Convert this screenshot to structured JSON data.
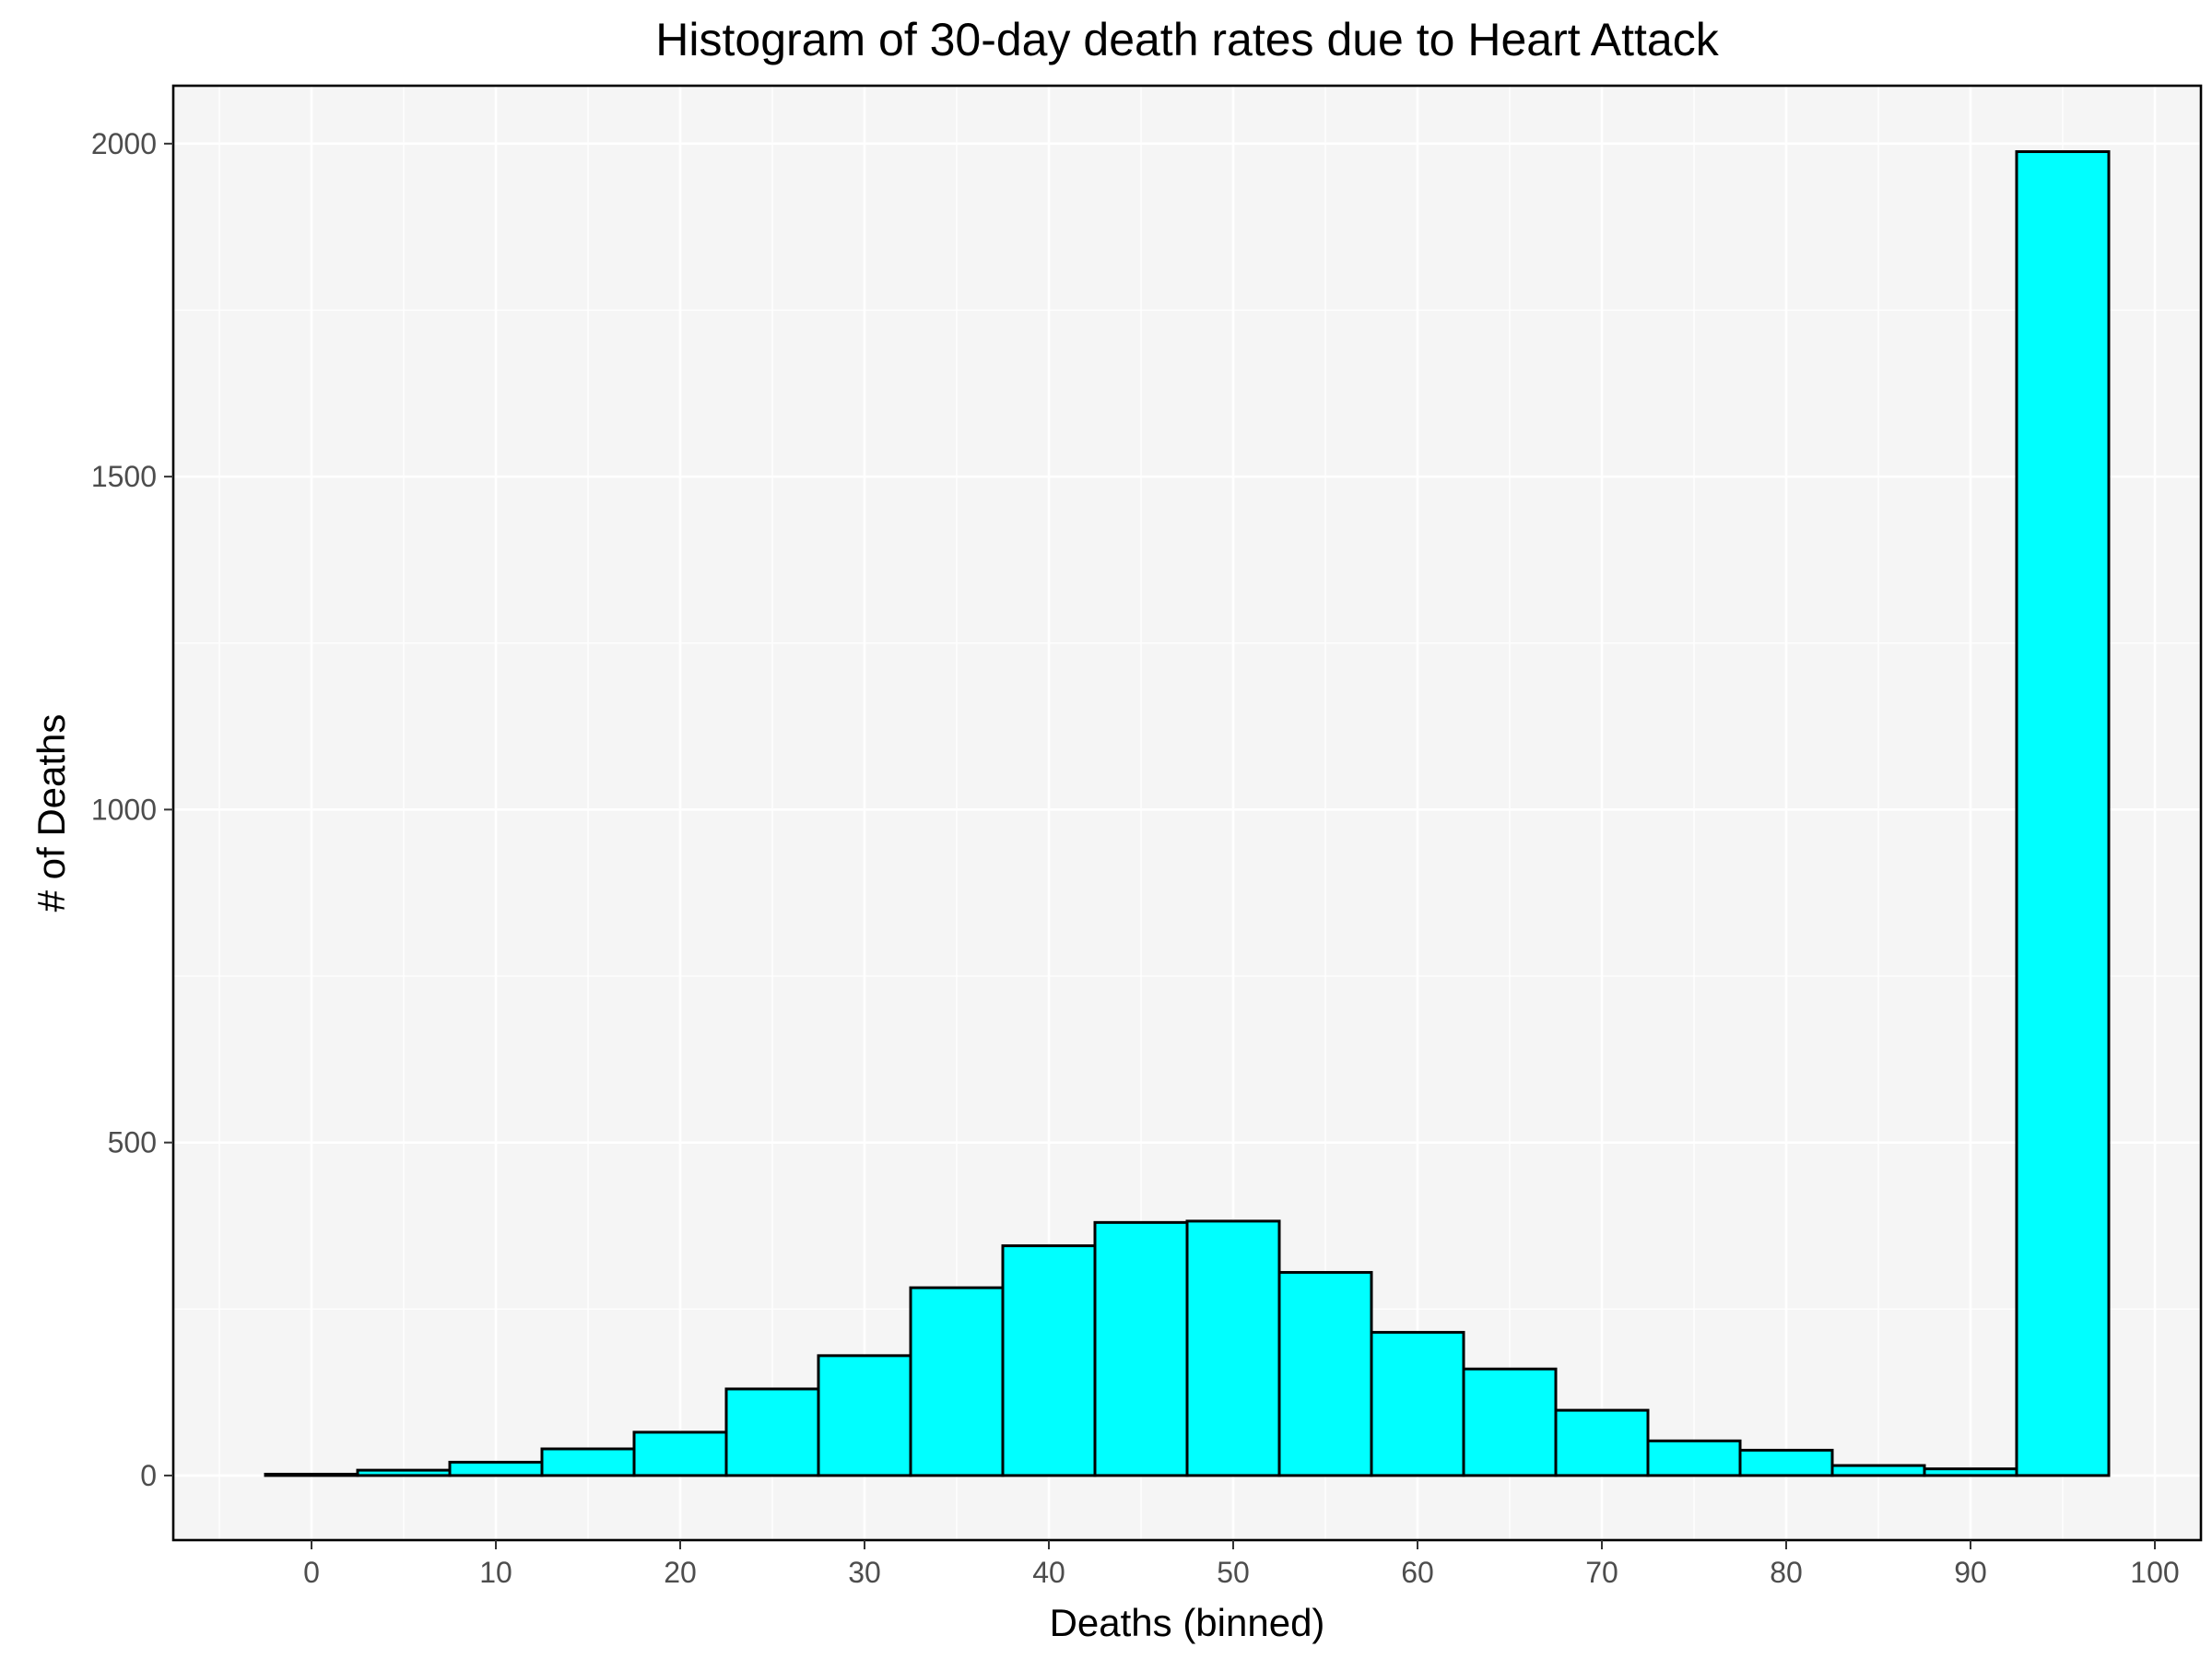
{
  "chart_data": {
    "type": "bar",
    "subtype": "histogram",
    "title": "Histogram of 30-day death rates due to Heart Attack",
    "xlabel": "Deaths (binned)",
    "ylabel": "# of Deaths",
    "bin_width": 5,
    "bin_centers": [
      0,
      5,
      10,
      15,
      20,
      25,
      30,
      35,
      40,
      45,
      50,
      55,
      60,
      65,
      70,
      75,
      80,
      85,
      90,
      95
    ],
    "values": [
      2,
      8,
      20,
      40,
      65,
      130,
      180,
      282,
      345,
      380,
      382,
      305,
      215,
      160,
      98,
      52,
      38,
      15,
      10,
      1988
    ],
    "xlim": [
      -7.5,
      102.5
    ],
    "ylim": [
      -97,
      2087
    ],
    "x_ticks": [
      "0",
      "10",
      "20",
      "30",
      "40",
      "50",
      "60",
      "70",
      "80",
      "90",
      "100"
    ],
    "y_ticks": [
      "0",
      "500",
      "1000",
      "1500",
      "2000"
    ],
    "grid": true,
    "colors": {
      "bar_fill": "#00ffff",
      "bar_outline": "#000000",
      "panel_background": "#f5f5f5",
      "panel_border": "#000000"
    }
  }
}
